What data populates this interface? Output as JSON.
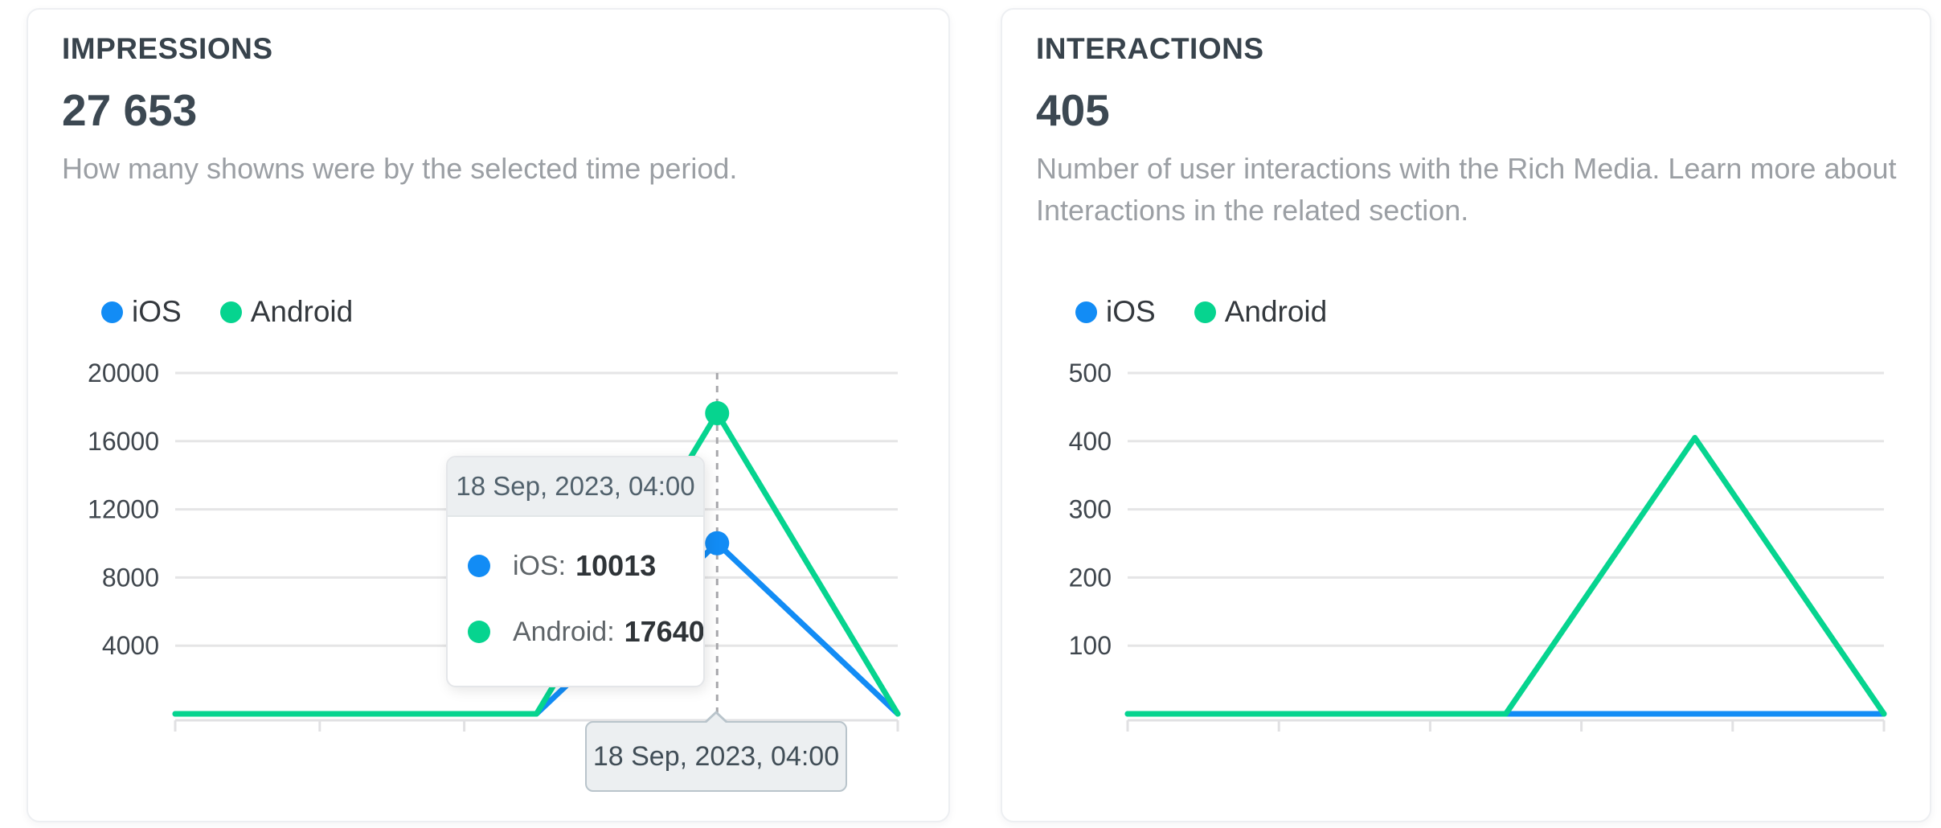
{
  "impressions_card": {
    "title": "IMPRESSIONS",
    "value": "27 653",
    "description": "How many showns were by the selected time period.",
    "legend": [
      {
        "label": "iOS",
        "color": "#128CF5"
      },
      {
        "label": "Android",
        "color": "#06D48F"
      }
    ],
    "tooltip": {
      "date": "18 Sep, 2023, 04:00",
      "rows": [
        {
          "label": "iOS:",
          "value": "10013",
          "color": "#128CF5"
        },
        {
          "label": "Android:",
          "value": "17640",
          "color": "#06D48F"
        }
      ]
    },
    "xaxis_hover_label": "18 Sep, 2023, 04:00"
  },
  "interactions_card": {
    "title": "INTERACTIONS",
    "value": "405",
    "description": "Number of user interactions with the Rich Media. Learn more about Interactions in the related section.",
    "legend": [
      {
        "label": "iOS",
        "color": "#128CF5"
      },
      {
        "label": "Android",
        "color": "#06D48F"
      }
    ]
  },
  "chart_data": [
    {
      "type": "line",
      "title": "IMPRESSIONS",
      "series": [
        {
          "name": "iOS",
          "color": "#128CF5",
          "values": [
            0,
            0,
            0,
            10013,
            0
          ]
        },
        {
          "name": "Android",
          "color": "#06D48F",
          "values": [
            0,
            0,
            0,
            17640,
            0
          ]
        }
      ],
      "x_hover": {
        "index": 3,
        "label": "18 Sep, 2023, 04:00"
      },
      "ylim": [
        0,
        20000
      ],
      "yticks": [
        4000,
        8000,
        12000,
        16000,
        20000
      ],
      "grid": true,
      "legend_position": "top",
      "crosshair_index": 3,
      "markers": [
        {
          "series": 0,
          "index": 3
        },
        {
          "series": 1,
          "index": 3
        }
      ]
    },
    {
      "type": "line",
      "title": "INTERACTIONS",
      "series": [
        {
          "name": "iOS",
          "color": "#128CF5",
          "values": [
            0,
            0,
            0,
            0,
            0
          ]
        },
        {
          "name": "Android",
          "color": "#06D48F",
          "values": [
            0,
            0,
            0,
            405,
            0
          ]
        }
      ],
      "ylim": [
        0,
        500
      ],
      "yticks": [
        100,
        200,
        300,
        400,
        500
      ],
      "grid": true,
      "legend_position": "top"
    }
  ]
}
